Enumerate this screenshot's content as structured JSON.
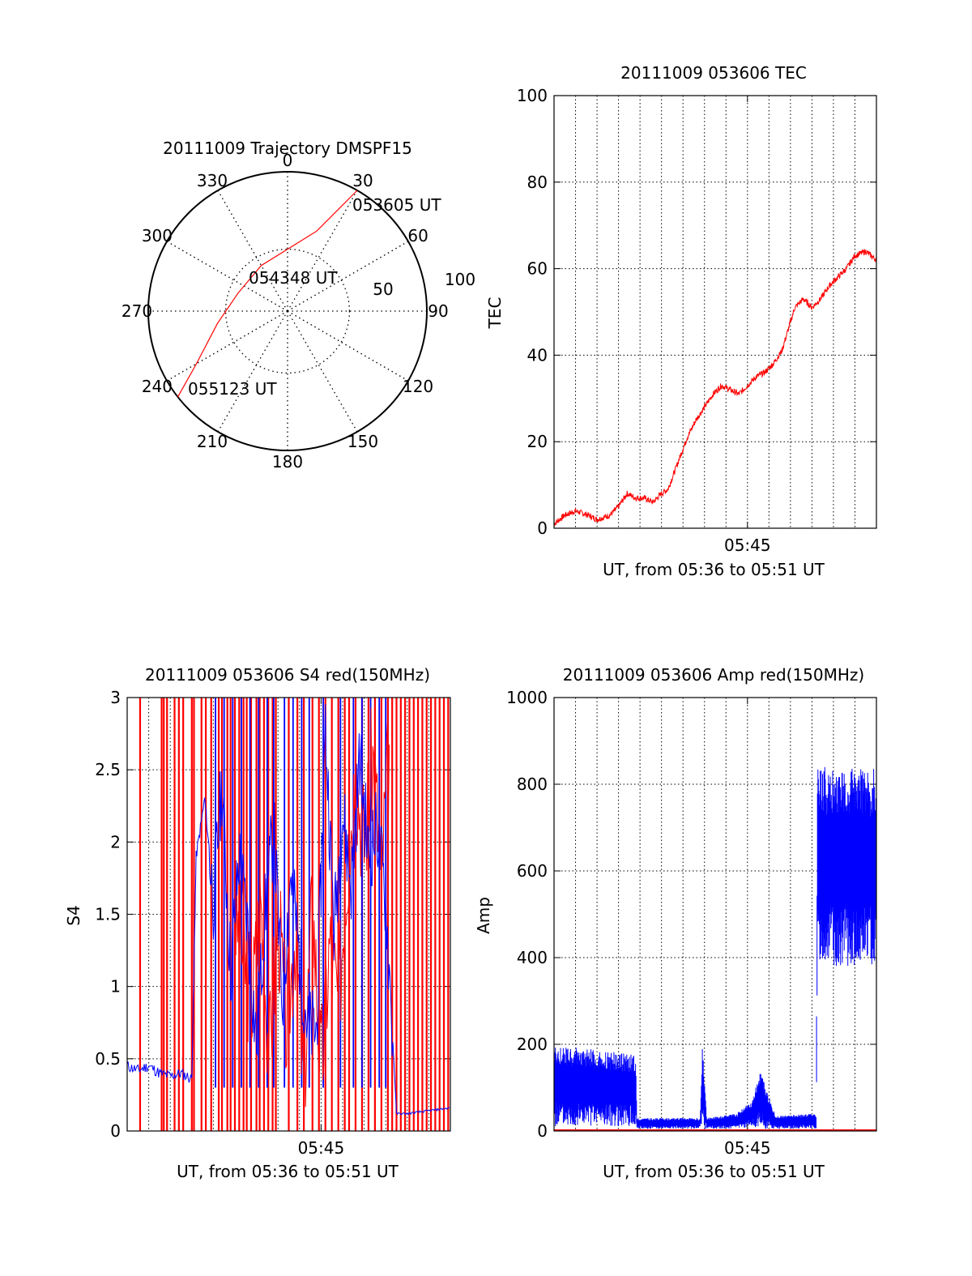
{
  "chart_data": [
    {
      "type": "polar-trajectory",
      "title": "20111009 Trajectory DMSPF15",
      "azimuth_labels": [
        "0",
        "30",
        "60",
        "90",
        "120",
        "150",
        "180",
        "210",
        "240",
        "270",
        "300",
        "330"
      ],
      "ring_labels": [
        "50",
        "100"
      ],
      "elevation_rings": [
        50
      ],
      "series": [
        {
          "color": "#ff0000",
          "points": [
            {
              "az": 30,
              "el": 0
            },
            {
              "az": 20,
              "el": 35
            },
            {
              "az": 0,
              "el": 50
            },
            {
              "az": -30,
              "el": 56
            },
            {
              "az": -70,
              "el": 56
            },
            {
              "az": -100,
              "el": 44
            },
            {
              "az": -120,
              "el": 22
            },
            {
              "az": -128,
              "el": 0
            }
          ]
        }
      ],
      "annotations": [
        "053605 UT",
        "054348 UT",
        "055123 UT"
      ]
    },
    {
      "type": "line",
      "title": "20111009 053606 TEC",
      "xlabel": "UT, from 05:36 to 05:51 UT",
      "ylabel": "TEC",
      "x_ticklabels": [
        "05:45"
      ],
      "y_ticklabels": [
        "0",
        "20",
        "40",
        "60",
        "80",
        "100"
      ],
      "ylim": [
        0,
        100
      ],
      "xlim_minutes": [
        0,
        15
      ],
      "grid": true,
      "series": [
        {
          "color": "#ff0000",
          "x": [
            0,
            0.5,
            1,
            1.6,
            2,
            2.6,
            3,
            3.4,
            3.8,
            4.2,
            4.6,
            5,
            5.3,
            5.6,
            5.9,
            6.2,
            6.6,
            7,
            7.4,
            7.8,
            8.2,
            8.6,
            9,
            9.2,
            9.4,
            9.8,
            10.2,
            10.6,
            10.9,
            11.2,
            11.6,
            12,
            12.4,
            12.8,
            13.2,
            13.6,
            14,
            14.5,
            15
          ],
          "y": [
            1,
            3,
            4,
            3,
            2,
            3,
            5,
            8,
            7,
            7,
            6,
            8,
            9,
            13,
            17,
            21,
            25,
            28,
            31,
            33,
            32,
            31,
            33,
            34,
            35,
            36,
            38,
            41,
            46,
            51,
            53,
            51,
            53,
            56,
            58,
            60,
            63,
            64,
            62
          ]
        }
      ]
    },
    {
      "type": "line",
      "title": "20111009 053606 S4 red(150MHz)",
      "xlabel": "UT, from 05:36 to 05:51 UT",
      "ylabel": "S4",
      "x_ticklabels": [
        "05:45"
      ],
      "y_ticklabels": [
        "0",
        "0.5",
        "1",
        "1.5",
        "2",
        "2.5",
        "3"
      ],
      "ylim": [
        0,
        3
      ],
      "xlim_minutes": [
        0,
        15
      ],
      "grid": true,
      "series": [
        {
          "color": "#0000ff",
          "x": [
            0,
            0.5,
            1,
            1.5,
            2,
            2.5,
            3,
            3.2,
            3.6,
            4,
            4.4,
            4.8,
            5.2,
            5.6,
            6,
            6.4,
            6.8,
            7.2,
            7.6,
            8,
            8.4,
            8.8,
            9.2,
            9.6,
            10,
            10.4,
            10.8,
            11.2,
            11.6,
            12,
            12.5,
            13,
            13.5,
            14,
            14.5,
            15
          ],
          "y": [
            0.45,
            0.42,
            0.45,
            0.4,
            0.38,
            0.4,
            0.36,
            1.9,
            2.3,
            1.6,
            2.4,
            1.1,
            1.9,
            1.4,
            0.6,
            1.5,
            2.1,
            0.9,
            1.8,
            1.2,
            0.7,
            0.7,
            2.8,
            1.4,
            2.2,
            1.7,
            2.6,
            1.9,
            2.1,
            1.6,
            0.12,
            0.12,
            0.13,
            0.14,
            0.15,
            0.16
          ]
        },
        {
          "color": "#ff0000",
          "x": [
            5,
            5.4,
            5.8,
            6.2,
            6.6,
            7,
            7.4,
            7.8,
            8.2,
            8.6,
            9,
            9.4,
            9.8,
            10.2,
            10.6,
            11,
            11.4,
            11.8,
            12.2
          ],
          "y": [
            1.5,
            1.2,
            0.9,
            1.6,
            0.5,
            1.5,
            0.7,
            1.4,
            0.3,
            1.6,
            0.4,
            1.3,
            0.9,
            1.8,
            2.5,
            2.0,
            2.6,
            1.8,
            2.7
          ]
        }
      ],
      "red_spike_x": [
        0.6,
        1.6,
        1.7,
        1.85,
        2.2,
        2.4,
        2.6,
        3.0,
        3.1,
        3.45,
        3.65,
        3.9,
        4.25,
        4.4,
        4.65,
        4.8,
        5.0,
        5.2,
        5.4,
        5.55,
        5.75,
        6.0,
        6.15,
        6.35,
        6.55,
        6.75,
        6.9,
        7.5,
        7.9,
        8.2,
        8.6,
        8.9,
        9.2,
        9.5,
        9.8,
        10.1,
        10.3,
        10.6,
        10.9,
        11.2,
        11.5,
        11.8,
        12.1,
        12.3,
        12.5,
        12.7,
        12.9,
        13.1,
        13.3,
        13.5,
        13.7,
        13.9,
        14.1,
        14.3,
        14.5,
        14.7,
        14.9
      ],
      "blue_spike_x": [
        4.1,
        4.5,
        4.9,
        5.3,
        5.7,
        6.1,
        6.5,
        6.8,
        7.3,
        7.7,
        8.1,
        8.45,
        9.1,
        9.9,
        10.5,
        10.9,
        11.3,
        11.7,
        12.0
      ]
    },
    {
      "type": "line",
      "title": "20111009 053606 Amp red(150MHz)",
      "xlabel": "UT, from 05:36 to 05:51 UT",
      "ylabel": "Amp",
      "x_ticklabels": [
        "05:45"
      ],
      "y_ticklabels": [
        "0",
        "200",
        "400",
        "600",
        "800",
        "1000"
      ],
      "ylim": [
        0,
        1000
      ],
      "xlim_minutes": [
        0,
        15
      ],
      "grid": true,
      "series": [
        {
          "color": "#0000ff",
          "x": [
            0,
            3.8,
            3.85,
            6.8,
            6.9,
            7.0,
            7.1,
            8.5,
            9.2,
            9.6,
            10.3,
            12.2,
            12.25,
            15
          ],
          "y_low": [
            10,
            10,
            5,
            5,
            20,
            5,
            5,
            5,
            10,
            5,
            5,
            5,
            380,
            380
          ],
          "y_high": [
            200,
            175,
            30,
            30,
            200,
            120,
            30,
            40,
            70,
            140,
            35,
            40,
            840,
            840
          ]
        },
        {
          "color": "#ff0000",
          "x": [
            0,
            15
          ],
          "y": [
            0,
            0
          ]
        }
      ]
    }
  ]
}
